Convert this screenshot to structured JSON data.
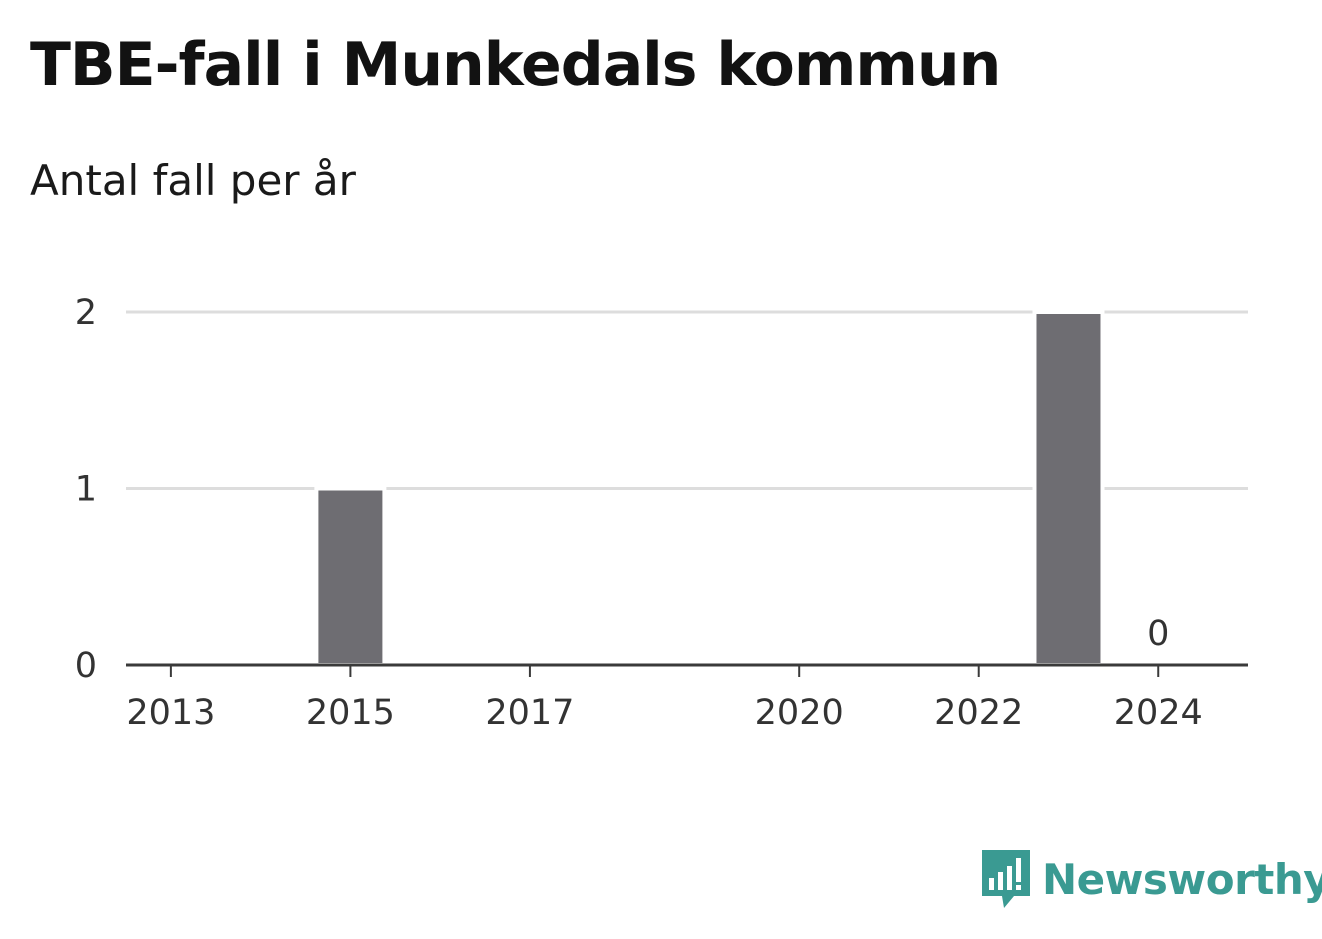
{
  "header": {
    "title": "TBE-fall i Munkedals kommun",
    "subtitle": "Antal fall per år"
  },
  "brand": {
    "name": "Newsworthy",
    "color": "#3a9a92",
    "icon": "bar-chart-speech-bubble-icon"
  },
  "chart_data": {
    "type": "bar",
    "x": [
      2013,
      2014,
      2015,
      2016,
      2017,
      2018,
      2019,
      2020,
      2021,
      2022,
      2023,
      2024
    ],
    "values": [
      0,
      0,
      1,
      0,
      0,
      0,
      0,
      0,
      0,
      0,
      2,
      0
    ],
    "x_tick_labels": [
      "2013",
      "2015",
      "2017",
      "2020",
      "2022",
      "2024"
    ],
    "y_ticks": [
      0,
      1,
      2
    ],
    "ylim": [
      0,
      2
    ],
    "data_labels": [
      {
        "x": 2024,
        "text": "0"
      }
    ],
    "bar_color": "#6e6d72",
    "grid": true,
    "title": "TBE-fall i Munkedals kommun",
    "subtitle": "Antal fall per år",
    "xlabel": "",
    "ylabel": ""
  }
}
